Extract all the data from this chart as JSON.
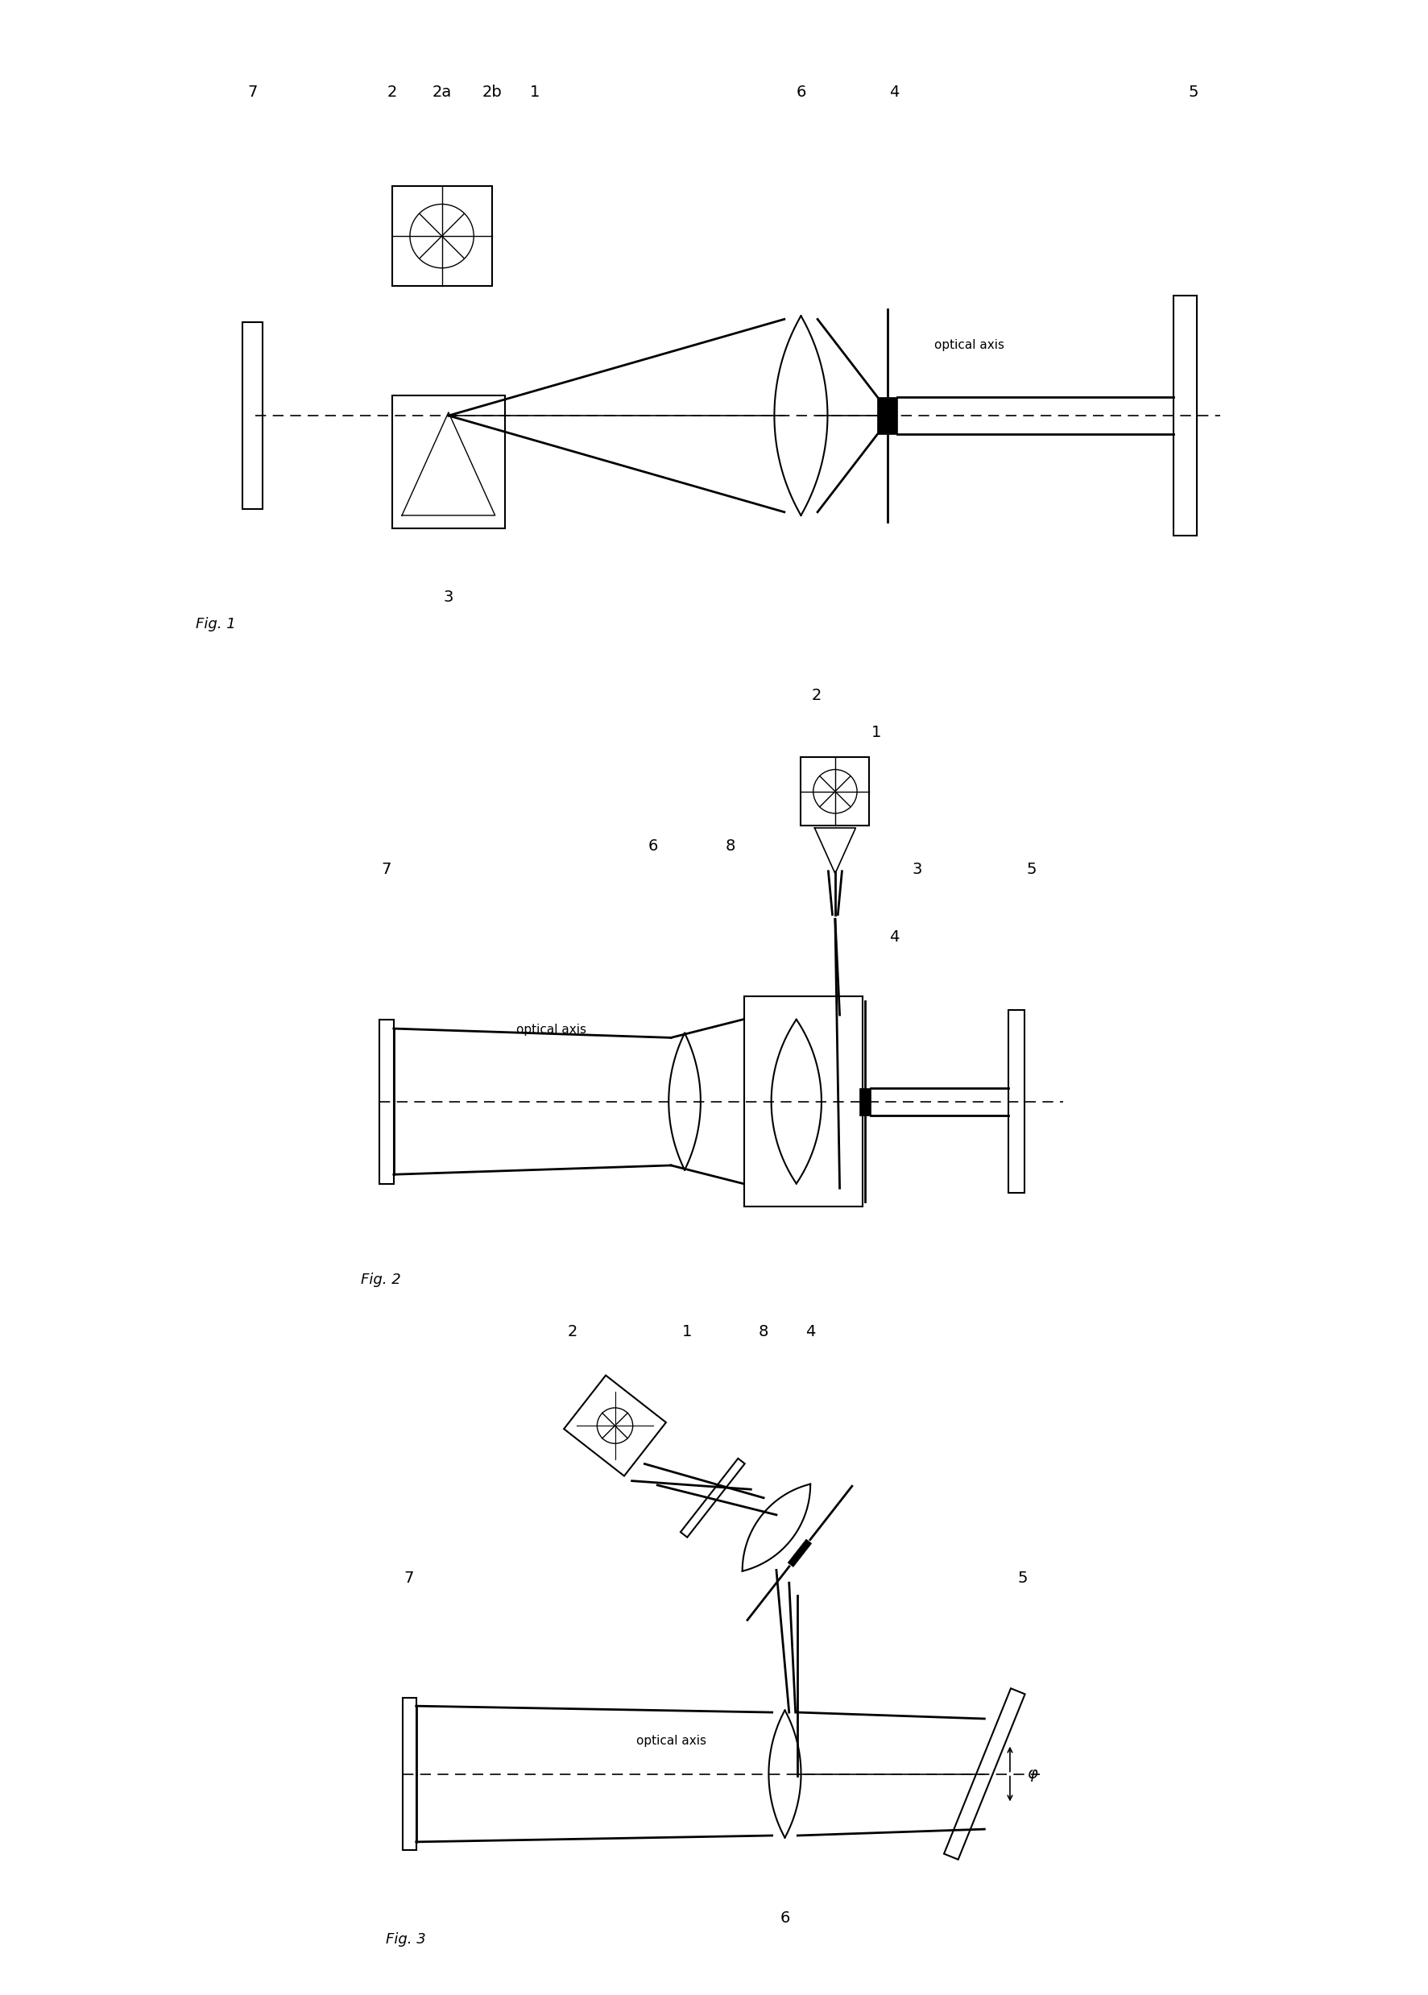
{
  "bg_color": "#ffffff",
  "line_color": "#000000",
  "fig_width": 17.73,
  "fig_height": 24.77,
  "fig1_label": "Fig. 1",
  "fig2_label": "Fig. 2",
  "fig3_label": "Fig. 3",
  "optical_axis_label": "optical axis",
  "phi_label": "φ"
}
